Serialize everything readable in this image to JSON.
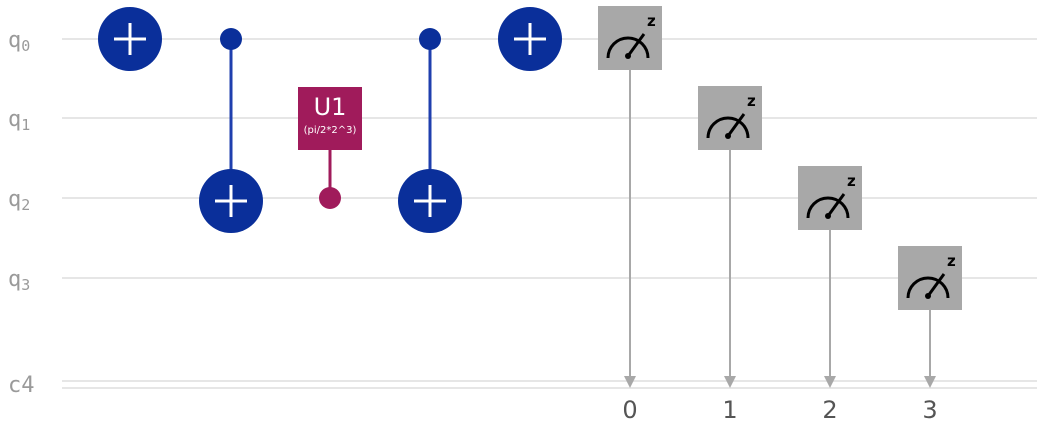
{
  "qubits": [
    {
      "label": "q",
      "index": "0"
    },
    {
      "label": "q",
      "index": "1"
    },
    {
      "label": "q",
      "index": "2"
    },
    {
      "label": "q",
      "index": "3"
    }
  ],
  "classical": {
    "label": "c4"
  },
  "gates": {
    "x_q0_first": {
      "type": "X",
      "target": 0
    },
    "cx_first": {
      "type": "CX",
      "control": 0,
      "target": 2
    },
    "u1": {
      "type": "U1",
      "label": "U1",
      "param": "(pi/2*2^3)",
      "qubit": 2
    },
    "cx_second": {
      "type": "CX",
      "control": 0,
      "target": 2
    },
    "x_q0_second": {
      "type": "X",
      "target": 0
    }
  },
  "measurements": [
    {
      "qubit": 0,
      "bit": "0",
      "basis": "z"
    },
    {
      "qubit": 1,
      "bit": "1",
      "basis": "z"
    },
    {
      "qubit": 2,
      "bit": "2",
      "basis": "z"
    },
    {
      "qubit": 3,
      "bit": "3",
      "basis": "z"
    }
  ],
  "colors": {
    "wire": "#e6e6e6",
    "x_gate": "#0a2f9a",
    "control_line": "#1f3fae",
    "u1_gate": "#a01b5b",
    "measure_box": "#a8a8a8",
    "measure_line": "#a8a8a8"
  }
}
